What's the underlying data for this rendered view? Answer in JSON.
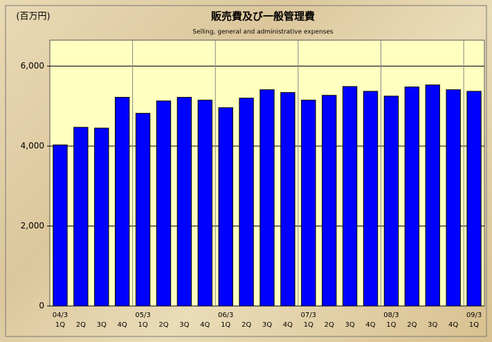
{
  "chart_data": {
    "type": "bar",
    "title": "販売費及び一般管理費",
    "subtitle": "Selling, general and administrative expenses",
    "unit_label": "(百万円)",
    "categories": [
      "1Q",
      "2Q",
      "3Q",
      "4Q",
      "1Q",
      "2Q",
      "3Q",
      "4Q",
      "1Q",
      "2Q",
      "3Q",
      "4Q",
      "1Q",
      "2Q",
      "3Q",
      "4Q",
      "1Q",
      "2Q",
      "3Q",
      "4Q",
      "1Q"
    ],
    "period_labels": [
      "04/3",
      null,
      null,
      null,
      "05/3",
      null,
      null,
      null,
      "06/3",
      null,
      null,
      null,
      "07/3",
      null,
      null,
      null,
      "08/3",
      null,
      null,
      null,
      "09/3"
    ],
    "values": [
      4030,
      4470,
      4450,
      5220,
      4820,
      5130,
      5220,
      5150,
      4960,
      5200,
      5410,
      5340,
      5150,
      5270,
      5490,
      5370,
      5250,
      5480,
      5530,
      5410,
      5370
    ],
    "color": "#0000ff",
    "ylim": [
      0,
      6650
    ],
    "yticks": [
      {
        "value": 0,
        "label": "0"
      },
      {
        "value": 2000,
        "label": "2,000"
      },
      {
        "value": 4000,
        "label": "4,000"
      },
      {
        "value": 6000,
        "label": "6,000"
      }
    ],
    "grid": true
  }
}
